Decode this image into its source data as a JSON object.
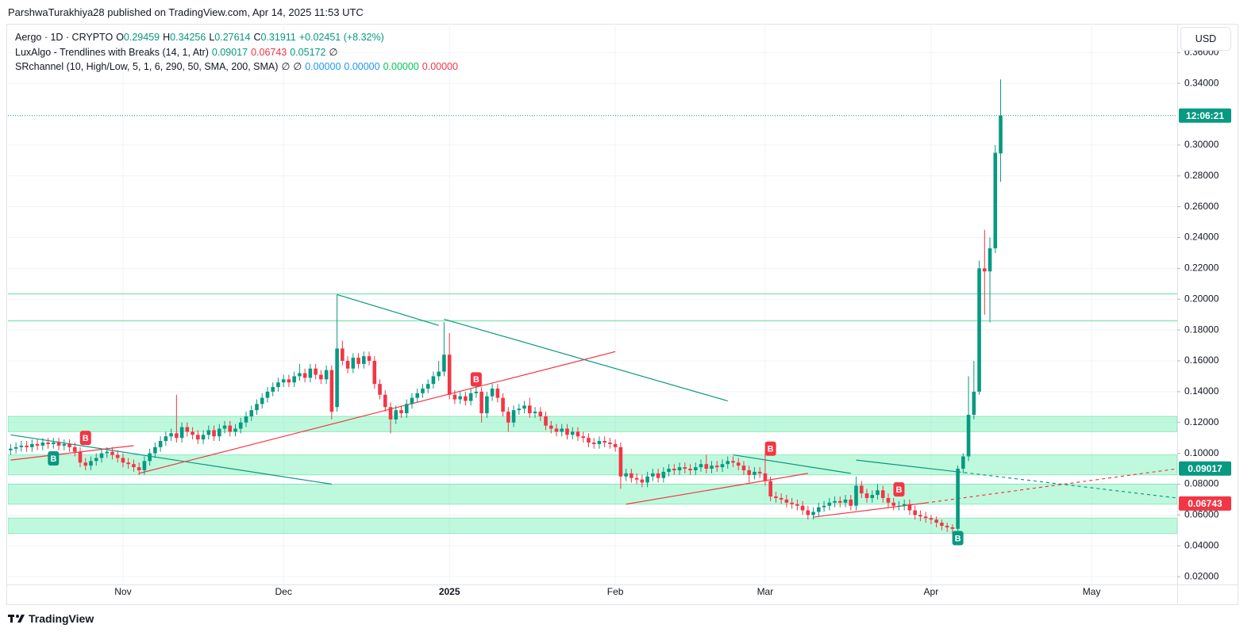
{
  "header": {
    "published": "ParshwaTurakhiya28 published on TradingView.com, Apr 14, 2025 11:53 UTC",
    "currency": "USD",
    "brand": "TradingView"
  },
  "legend": {
    "symbol": "Aergo · 1D · CRYPTO",
    "o_label": "O",
    "h_label": "H",
    "l_label": "L",
    "c_label": "C",
    "change": "+0.02451 (+8.32%)",
    "indicators": [
      {
        "name": "LuxAlgo - Trendlines with Breaks (14, 1, Atr)",
        "values": [
          {
            "text": "0.09017",
            "color": "#089981"
          },
          {
            "text": "0.06743",
            "color": "#f23645"
          },
          {
            "text": "0.05172",
            "color": "#089981"
          },
          {
            "text": "∅",
            "color": "#131722"
          }
        ]
      },
      {
        "name": "SRchannel (10, High/Low, 5, 1, 6, 290, 50, SMA, 200, SMA)",
        "values": [
          {
            "text": "∅",
            "color": "#131722"
          },
          {
            "text": "∅",
            "color": "#131722"
          },
          {
            "text": "0.00000",
            "color": "#2196f3"
          },
          {
            "text": "0.00000",
            "color": "#2196f3"
          },
          {
            "text": "0.00000",
            "color": "#00c853"
          },
          {
            "text": "0.00000",
            "color": "#f23645"
          }
        ]
      }
    ]
  },
  "chart_data": {
    "type": "candlestick",
    "up_color": "#089981",
    "down_color": "#f23645",
    "grid": true,
    "xlim": [
      -0.5,
      218
    ],
    "ylim": [
      0.0149,
      0.3761
    ],
    "xticks": [
      {
        "value": 21,
        "label": "Nov"
      },
      {
        "value": 51,
        "label": "Dec"
      },
      {
        "value": 82,
        "label": "2025",
        "bold": true
      },
      {
        "value": 113,
        "label": "Feb"
      },
      {
        "value": 141,
        "label": "Mar"
      },
      {
        "value": 172,
        "label": "Apr"
      },
      {
        "value": 202,
        "label": "May"
      }
    ],
    "yticks": [
      {
        "value": 0.02,
        "label": "0.02000"
      },
      {
        "value": 0.04,
        "label": "0.04000"
      },
      {
        "value": 0.06,
        "label": "0.06000"
      },
      {
        "value": 0.08,
        "label": "0.08000"
      },
      {
        "value": 0.1,
        "label": "0.10000"
      },
      {
        "value": 0.12,
        "label": "0.12000"
      },
      {
        "value": 0.14,
        "label": "0.14000"
      },
      {
        "value": 0.16,
        "label": "0.16000"
      },
      {
        "value": 0.18,
        "label": "0.18000"
      },
      {
        "value": 0.2,
        "label": "0.20000"
      },
      {
        "value": 0.22,
        "label": "0.22000"
      },
      {
        "value": 0.24,
        "label": "0.24000"
      },
      {
        "value": 0.26,
        "label": "0.26000"
      },
      {
        "value": 0.28,
        "label": "0.28000"
      },
      {
        "value": 0.3,
        "label": "0.30000"
      },
      {
        "value": 0.34,
        "label": "0.34000"
      },
      {
        "value": 0.36,
        "label": "0.36000"
      }
    ],
    "open": [
      0.102,
      0.103,
      0.104,
      0.105,
      0.104,
      0.106,
      0.105,
      0.107,
      0.106,
      0.107,
      0.105,
      0.106,
      0.104,
      0.101,
      0.094,
      0.092,
      0.095,
      0.097,
      0.1,
      0.101,
      0.099,
      0.097,
      0.094,
      0.093,
      0.091,
      0.089,
      0.095,
      0.1,
      0.104,
      0.108,
      0.111,
      0.113,
      0.11,
      0.117,
      0.114,
      0.112,
      0.109,
      0.112,
      0.115,
      0.111,
      0.116,
      0.118,
      0.114,
      0.116,
      0.12,
      0.124,
      0.128,
      0.132,
      0.136,
      0.14,
      0.143,
      0.146,
      0.148,
      0.146,
      0.15,
      0.152,
      0.149,
      0.155,
      0.151,
      0.148,
      0.154,
      0.13,
      0.168,
      0.16,
      0.155,
      0.162,
      0.158,
      0.163,
      0.16,
      0.145,
      0.138,
      0.13,
      0.122,
      0.128,
      0.126,
      0.132,
      0.136,
      0.139,
      0.142,
      0.145,
      0.15,
      0.153,
      0.164,
      0.138,
      0.135,
      0.137,
      0.134,
      0.139,
      0.14,
      0.126,
      0.137,
      0.142,
      0.136,
      0.127,
      0.12,
      0.128,
      0.129,
      0.131,
      0.126,
      0.127,
      0.124,
      0.118,
      0.116,
      0.114,
      0.116,
      0.112,
      0.114,
      0.111,
      0.11,
      0.107,
      0.106,
      0.108,
      0.107,
      0.106,
      0.104,
      0.085,
      0.087,
      0.084,
      0.083,
      0.081,
      0.085,
      0.087,
      0.084,
      0.088,
      0.09,
      0.089,
      0.091,
      0.09,
      0.089,
      0.091,
      0.093,
      0.09,
      0.092,
      0.091,
      0.093,
      0.095,
      0.094,
      0.092,
      0.089,
      0.086,
      0.088,
      0.087,
      0.082,
      0.072,
      0.071,
      0.07,
      0.068,
      0.067,
      0.066,
      0.063,
      0.06,
      0.062,
      0.065,
      0.066,
      0.068,
      0.069,
      0.068,
      0.07,
      0.066,
      0.079,
      0.074,
      0.071,
      0.073,
      0.076,
      0.071,
      0.068,
      0.066,
      0.066,
      0.067,
      0.063,
      0.06,
      0.059,
      0.058,
      0.057,
      0.055,
      0.053,
      0.052,
      0.051,
      0.09,
      0.098,
      0.125,
      0.14,
      0.22,
      0.218,
      0.233,
      0.29459
    ],
    "high": [
      0.106,
      0.107,
      0.108,
      0.108,
      0.109,
      0.109,
      0.11,
      0.11,
      0.11,
      0.11,
      0.109,
      0.109,
      0.107,
      0.104,
      0.097,
      0.098,
      0.1,
      0.103,
      0.104,
      0.104,
      0.102,
      0.1,
      0.097,
      0.096,
      0.094,
      0.098,
      0.103,
      0.107,
      0.111,
      0.114,
      0.116,
      0.138,
      0.12,
      0.12,
      0.117,
      0.115,
      0.115,
      0.118,
      0.118,
      0.119,
      0.121,
      0.121,
      0.119,
      0.123,
      0.127,
      0.131,
      0.135,
      0.139,
      0.143,
      0.146,
      0.149,
      0.151,
      0.151,
      0.153,
      0.158,
      0.155,
      0.158,
      0.158,
      0.154,
      0.157,
      0.157,
      0.203,
      0.173,
      0.163,
      0.165,
      0.165,
      0.166,
      0.166,
      0.163,
      0.148,
      0.141,
      0.133,
      0.131,
      0.131,
      0.135,
      0.139,
      0.142,
      0.145,
      0.148,
      0.153,
      0.16,
      0.185,
      0.178,
      0.141,
      0.14,
      0.14,
      0.142,
      0.146,
      0.143,
      0.14,
      0.145,
      0.145,
      0.139,
      0.13,
      0.131,
      0.132,
      0.134,
      0.136,
      0.13,
      0.13,
      0.127,
      0.121,
      0.119,
      0.119,
      0.119,
      0.117,
      0.117,
      0.114,
      0.113,
      0.11,
      0.111,
      0.111,
      0.11,
      0.109,
      0.107,
      0.09,
      0.09,
      0.087,
      0.086,
      0.088,
      0.09,
      0.09,
      0.091,
      0.093,
      0.093,
      0.094,
      0.094,
      0.093,
      0.094,
      0.096,
      0.099,
      0.095,
      0.095,
      0.096,
      0.098,
      0.098,
      0.097,
      0.095,
      0.092,
      0.091,
      0.091,
      0.1,
      0.085,
      0.075,
      0.074,
      0.073,
      0.071,
      0.07,
      0.069,
      0.066,
      0.065,
      0.068,
      0.069,
      0.071,
      0.072,
      0.072,
      0.073,
      0.073,
      0.085,
      0.082,
      0.077,
      0.076,
      0.08,
      0.079,
      0.074,
      0.071,
      0.069,
      0.07,
      0.07,
      0.066,
      0.063,
      0.062,
      0.06,
      0.059,
      0.057,
      0.055,
      0.054,
      0.092,
      0.1,
      0.15,
      0.16,
      0.225,
      0.245,
      0.24,
      0.3,
      0.34256
    ],
    "low": [
      0.099,
      0.1,
      0.101,
      0.101,
      0.101,
      0.102,
      0.102,
      0.103,
      0.103,
      0.102,
      0.102,
      0.101,
      0.098,
      0.091,
      0.089,
      0.089,
      0.092,
      0.094,
      0.097,
      0.096,
      0.094,
      0.091,
      0.09,
      0.088,
      0.086,
      0.086,
      0.092,
      0.097,
      0.101,
      0.105,
      0.108,
      0.107,
      0.107,
      0.111,
      0.109,
      0.106,
      0.106,
      0.109,
      0.108,
      0.108,
      0.113,
      0.111,
      0.111,
      0.113,
      0.117,
      0.121,
      0.125,
      0.129,
      0.133,
      0.137,
      0.14,
      0.143,
      0.143,
      0.143,
      0.147,
      0.146,
      0.146,
      0.148,
      0.145,
      0.145,
      0.122,
      0.127,
      0.157,
      0.152,
      0.152,
      0.155,
      0.155,
      0.157,
      0.142,
      0.135,
      0.127,
      0.113,
      0.119,
      0.123,
      0.123,
      0.129,
      0.133,
      0.136,
      0.139,
      0.142,
      0.147,
      0.15,
      0.135,
      0.132,
      0.132,
      0.131,
      0.131,
      0.136,
      0.12,
      0.123,
      0.134,
      0.133,
      0.124,
      0.114,
      0.117,
      0.125,
      0.126,
      0.123,
      0.123,
      0.121,
      0.115,
      0.113,
      0.111,
      0.111,
      0.109,
      0.109,
      0.108,
      0.107,
      0.104,
      0.103,
      0.103,
      0.104,
      0.103,
      0.101,
      0.077,
      0.082,
      0.081,
      0.08,
      0.078,
      0.078,
      0.082,
      0.081,
      0.081,
      0.085,
      0.086,
      0.086,
      0.087,
      0.086,
      0.086,
      0.088,
      0.087,
      0.087,
      0.088,
      0.088,
      0.09,
      0.091,
      0.089,
      0.086,
      0.081,
      0.083,
      0.084,
      0.079,
      0.069,
      0.068,
      0.067,
      0.065,
      0.064,
      0.063,
      0.06,
      0.057,
      0.057,
      0.059,
      0.062,
      0.063,
      0.065,
      0.065,
      0.065,
      0.063,
      0.063,
      0.071,
      0.068,
      0.068,
      0.07,
      0.068,
      0.065,
      0.063,
      0.063,
      0.063,
      0.06,
      0.057,
      0.056,
      0.055,
      0.054,
      0.052,
      0.05,
      0.049,
      0.048,
      0.045,
      0.087,
      0.095,
      0.122,
      0.138,
      0.19,
      0.185,
      0.23,
      0.27614
    ],
    "close": [
      0.103,
      0.104,
      0.105,
      0.104,
      0.106,
      0.105,
      0.107,
      0.106,
      0.107,
      0.105,
      0.106,
      0.104,
      0.101,
      0.094,
      0.092,
      0.095,
      0.097,
      0.1,
      0.101,
      0.099,
      0.097,
      0.094,
      0.093,
      0.091,
      0.089,
      0.095,
      0.1,
      0.104,
      0.108,
      0.111,
      0.113,
      0.11,
      0.117,
      0.114,
      0.112,
      0.109,
      0.112,
      0.115,
      0.111,
      0.116,
      0.118,
      0.114,
      0.116,
      0.12,
      0.124,
      0.128,
      0.132,
      0.136,
      0.14,
      0.143,
      0.146,
      0.148,
      0.146,
      0.15,
      0.152,
      0.149,
      0.155,
      0.151,
      0.148,
      0.154,
      0.127,
      0.168,
      0.16,
      0.155,
      0.162,
      0.158,
      0.163,
      0.16,
      0.145,
      0.138,
      0.13,
      0.122,
      0.128,
      0.126,
      0.132,
      0.136,
      0.139,
      0.142,
      0.145,
      0.15,
      0.153,
      0.164,
      0.138,
      0.135,
      0.137,
      0.134,
      0.139,
      0.14,
      0.126,
      0.137,
      0.142,
      0.136,
      0.127,
      0.12,
      0.128,
      0.129,
      0.131,
      0.126,
      0.127,
      0.124,
      0.118,
      0.116,
      0.114,
      0.116,
      0.112,
      0.114,
      0.111,
      0.11,
      0.107,
      0.106,
      0.108,
      0.107,
      0.106,
      0.104,
      0.085,
      0.087,
      0.084,
      0.083,
      0.081,
      0.085,
      0.087,
      0.084,
      0.088,
      0.09,
      0.089,
      0.091,
      0.09,
      0.089,
      0.091,
      0.093,
      0.09,
      0.092,
      0.091,
      0.093,
      0.095,
      0.094,
      0.092,
      0.089,
      0.086,
      0.088,
      0.087,
      0.082,
      0.072,
      0.071,
      0.07,
      0.068,
      0.067,
      0.066,
      0.063,
      0.06,
      0.062,
      0.065,
      0.066,
      0.068,
      0.069,
      0.068,
      0.07,
      0.066,
      0.079,
      0.074,
      0.071,
      0.073,
      0.076,
      0.071,
      0.068,
      0.066,
      0.066,
      0.067,
      0.063,
      0.06,
      0.059,
      0.058,
      0.057,
      0.055,
      0.053,
      0.052,
      0.051,
      0.09,
      0.098,
      0.125,
      0.14,
      0.22,
      0.218,
      0.233,
      0.295,
      0.31911
    ],
    "zones": [
      [
        0.114,
        0.124
      ],
      [
        0.086,
        0.099
      ],
      [
        0.067,
        0.08
      ],
      [
        0.048,
        0.058
      ]
    ],
    "levels": [
      0.2035,
      0.186
    ],
    "trendlines": [
      {
        "color": "#089981",
        "style": "solid",
        "x": [
          0,
          60
        ],
        "y": [
          0.112,
          0.08
        ]
      },
      {
        "color": "#089981",
        "style": "solid",
        "x": [
          61,
          80
        ],
        "y": [
          0.203,
          0.183
        ]
      },
      {
        "color": "#089981",
        "style": "solid",
        "x": [
          81,
          134
        ],
        "y": [
          0.187,
          0.134
        ]
      },
      {
        "color": "#089981",
        "style": "solid",
        "x": [
          135,
          157
        ],
        "y": [
          0.099,
          0.087
        ]
      },
      {
        "color": "#089981",
        "style": "solid",
        "x": [
          158,
          177
        ],
        "y": [
          0.0956,
          0.088
        ]
      },
      {
        "color": "#089981",
        "style": "dashed",
        "x": [
          177,
          218
        ],
        "y": [
          0.088,
          0.071
        ]
      },
      {
        "color": "#f23645",
        "style": "solid",
        "x": [
          0,
          23
        ],
        "y": [
          0.0956,
          0.105
        ]
      },
      {
        "color": "#f23645",
        "style": "solid",
        "x": [
          24,
          113
        ],
        "y": [
          0.087,
          0.166
        ]
      },
      {
        "color": "#f23645",
        "style": "solid",
        "x": [
          115,
          149
        ],
        "y": [
          0.067,
          0.087
        ]
      },
      {
        "color": "#f23645",
        "style": "solid",
        "x": [
          150,
          171
        ],
        "y": [
          0.0586,
          0.0678
        ]
      },
      {
        "color": "#f23645",
        "style": "dashed",
        "x": [
          171,
          218
        ],
        "y": [
          0.0678,
          0.09
        ]
      }
    ],
    "break_labels": [
      {
        "label": "B",
        "x": 8,
        "y": 0.0967,
        "color": "#089981"
      },
      {
        "label": "B",
        "x": 14,
        "y": 0.11,
        "color": "#f23645"
      },
      {
        "label": "B",
        "x": 87,
        "y": 0.148,
        "color": "#f23645"
      },
      {
        "label": "B",
        "x": 142,
        "y": 0.103,
        "color": "#f23645"
      },
      {
        "label": "B",
        "x": 166,
        "y": 0.0766,
        "color": "#f23645"
      },
      {
        "label": "B",
        "x": 177,
        "y": 0.045,
        "color": "#089981"
      }
    ],
    "price_labels": [
      {
        "value": 0.31911,
        "label": "12:06:21",
        "color": "#089981"
      },
      {
        "value": 0.09017,
        "label": "0.09017",
        "color": "#089981"
      },
      {
        "value": 0.06743,
        "label": "0.06743",
        "color": "#f23645"
      }
    ]
  }
}
